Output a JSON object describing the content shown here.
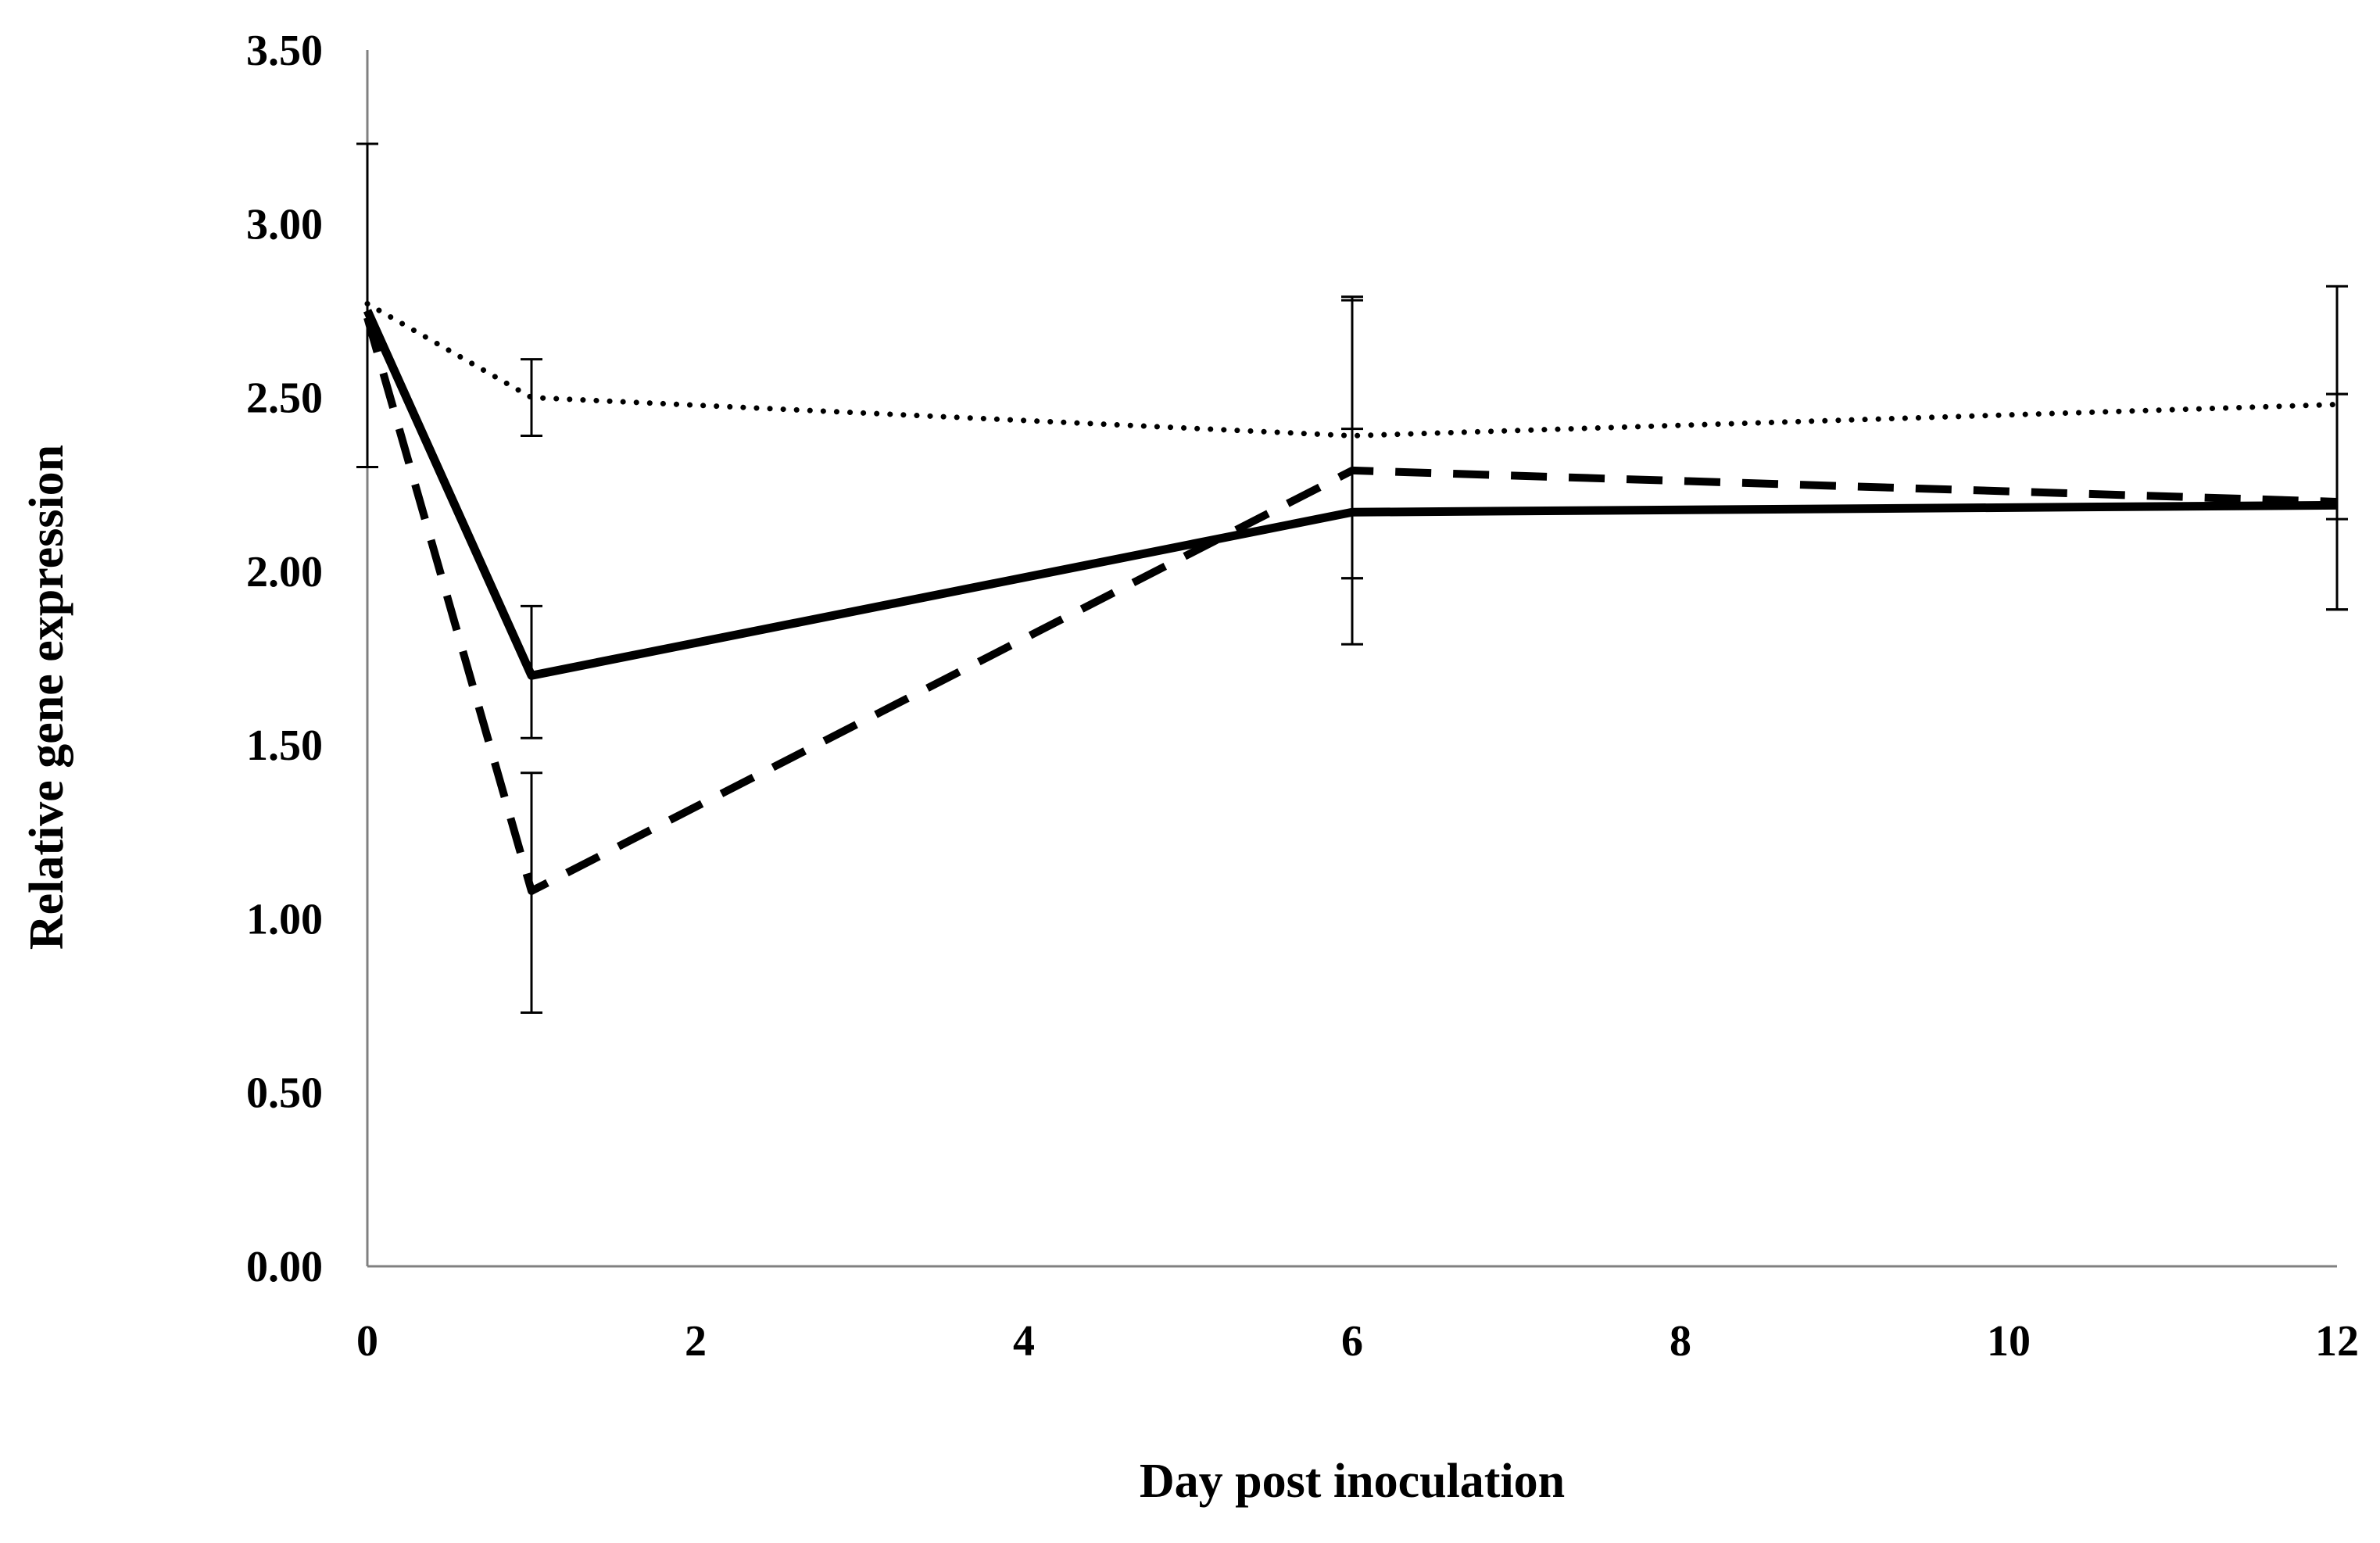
{
  "chart_data": {
    "type": "line",
    "title": "",
    "xlabel": "Day post inoculation",
    "ylabel": "Relative gene expression",
    "xlim": [
      0,
      12
    ],
    "ylim": [
      0,
      3.5
    ],
    "x_ticks": [
      0,
      2,
      4,
      6,
      8,
      10,
      12
    ],
    "x_tick_labels": [
      "0",
      "2",
      "4",
      "6",
      "8",
      "10",
      "12"
    ],
    "y_ticks": [
      0,
      0.5,
      1,
      1.5,
      2,
      2.5,
      3,
      3.5
    ],
    "y_tick_labels": [
      "0.00",
      "0.50",
      "1.00",
      "1.50",
      "2.00",
      "2.50",
      "3.00",
      "3.50"
    ],
    "grid": false,
    "legend": false,
    "series": [
      {
        "name": "solid",
        "style": "solid",
        "color": "#000000",
        "x": [
          0,
          1,
          6,
          12
        ],
        "values": [
          2.75,
          1.7,
          2.17,
          2.19
        ],
        "error_low": [
          2.3,
          1.52,
          1.79,
          1.89
        ],
        "error_high": [
          3.23,
          1.9,
          2.41,
          2.51
        ]
      },
      {
        "name": "dashed",
        "style": "dashed",
        "color": "#000000",
        "x": [
          0,
          1,
          6,
          12
        ],
        "values": [
          2.73,
          1.08,
          2.29,
          2.2
        ],
        "error_low": [
          2.3,
          0.73,
          1.98,
          1.89
        ],
        "error_high": [
          3.23,
          1.42,
          2.78,
          2.51
        ]
      },
      {
        "name": "dotted",
        "style": "dotted",
        "color": "#000000",
        "x": [
          0,
          1,
          6,
          12
        ],
        "values": [
          2.77,
          2.5,
          2.39,
          2.48
        ],
        "error_low": [
          2.3,
          2.39,
          1.98,
          2.15
        ],
        "error_high": [
          3.23,
          2.61,
          2.79,
          2.82
        ]
      }
    ]
  }
}
